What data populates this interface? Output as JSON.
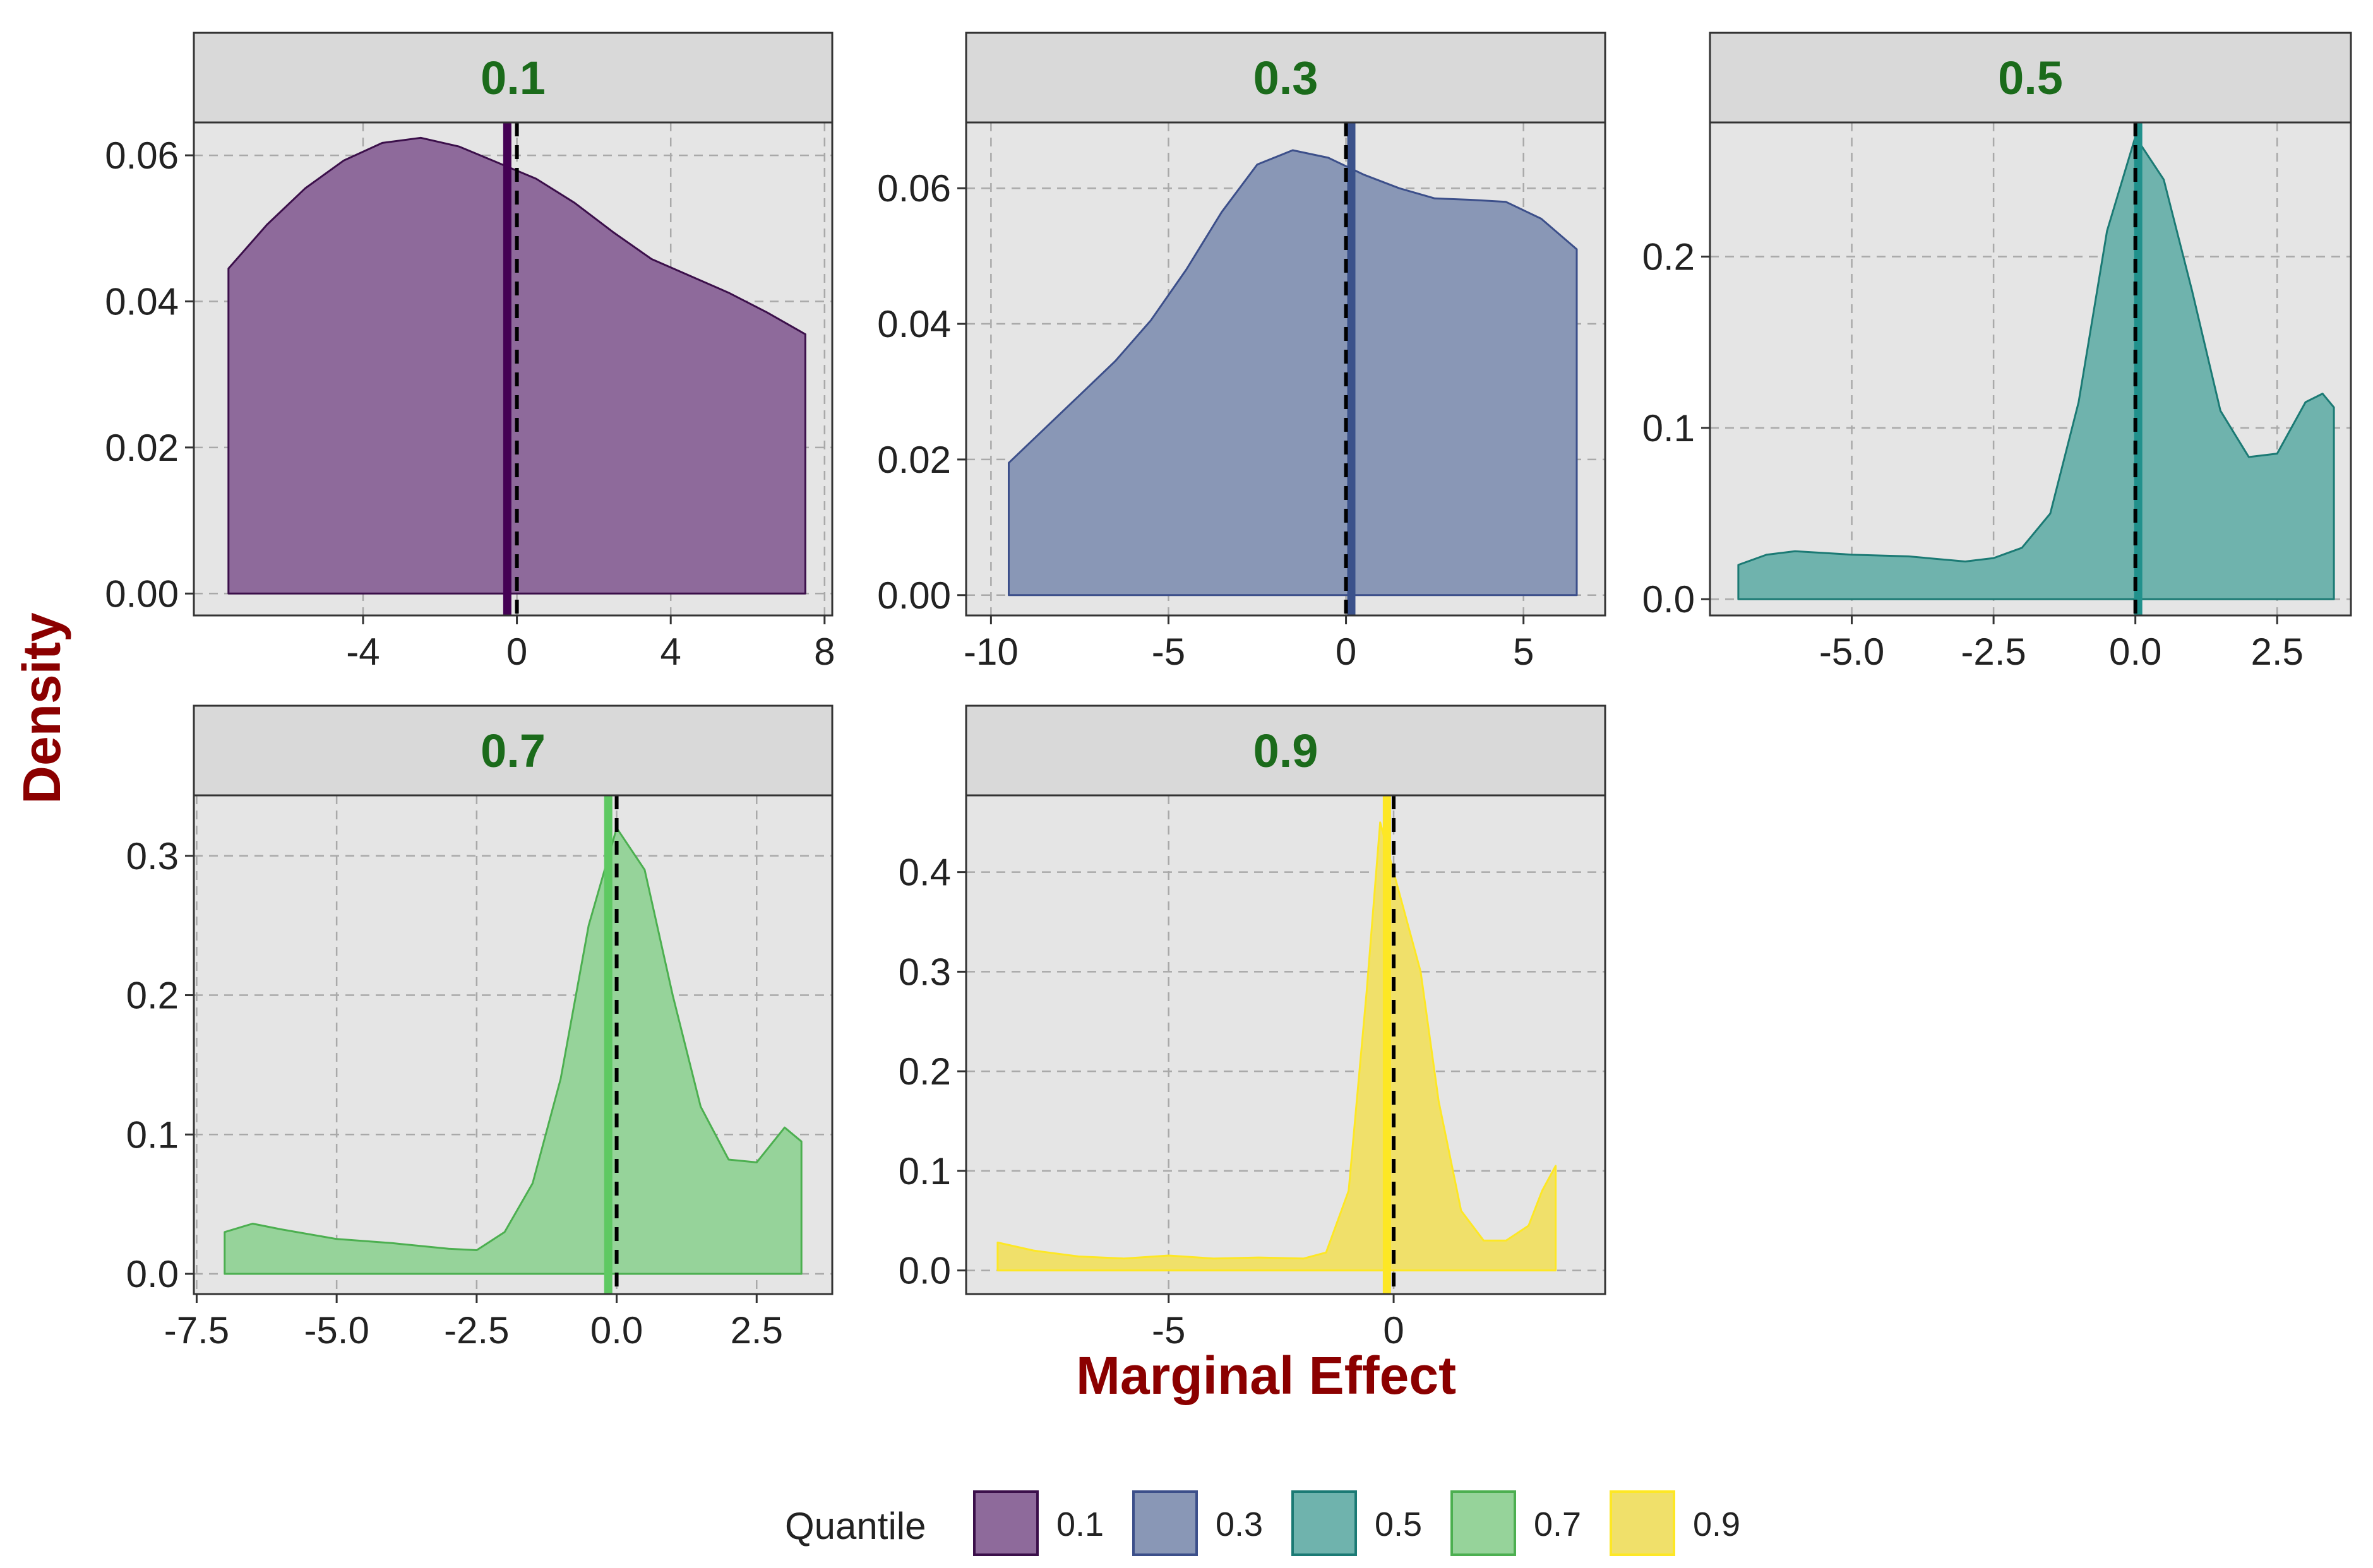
{
  "chart_data": {
    "type": "area",
    "title": "",
    "xlabel": "Marginal Effect",
    "ylabel": "Density",
    "legend_title": "Quantile",
    "legend_position": "bottom",
    "grid": true,
    "colors": {
      "strip_text": "#1b6b1b",
      "axis_title": "#8b0000",
      "panel_bg": "#e5e5e5",
      "strip_bg": "#d9d9d9",
      "grid": "#a9a9a9",
      "dashed_zero_line": "#000000"
    },
    "panels": [
      {
        "label": "0.1",
        "fill": "#8e6a9b",
        "stroke": "#3b0f4a",
        "median_color": "#440154",
        "xlim": [
          -8.4,
          8.2
        ],
        "ylim": [
          -0.003,
          0.0645
        ],
        "xticks": [
          -4,
          0,
          4,
          8
        ],
        "xtick_labels": [
          "-4",
          "0",
          "4",
          "8"
        ],
        "yticks": [
          0,
          0.02,
          0.04,
          0.06
        ],
        "ytick_labels": [
          "0.00",
          "0.02",
          "0.04",
          "0.06"
        ],
        "median": -0.25,
        "x": [
          -7.5,
          -6.5,
          -5.5,
          -4.5,
          -3.5,
          -2.5,
          -1.5,
          -0.5,
          0.5,
          1.5,
          2.5,
          3.5,
          4.5,
          5.5,
          6.5,
          7.5
        ],
        "density": [
          0.0445,
          0.0505,
          0.0555,
          0.0593,
          0.0617,
          0.0624,
          0.0612,
          0.059,
          0.0568,
          0.0535,
          0.0495,
          0.0458,
          0.0435,
          0.0412,
          0.0385,
          0.0355
        ]
      },
      {
        "label": "0.3",
        "fill": "#8997b6",
        "stroke": "#3c4f8a",
        "median_color": "#3b528b",
        "xlim": [
          -10.7,
          7.3
        ],
        "ylim": [
          -0.003,
          0.0697
        ],
        "xticks": [
          -10,
          -5,
          0,
          5
        ],
        "xtick_labels": [
          "-10",
          "-5",
          "0",
          "5"
        ],
        "yticks": [
          0,
          0.02,
          0.04,
          0.06
        ],
        "ytick_labels": [
          "0.00",
          "0.02",
          "0.04",
          "0.06"
        ],
        "median": 0.15,
        "x": [
          -9.5,
          -8.5,
          -7.5,
          -6.5,
          -5.5,
          -4.5,
          -3.5,
          -2.5,
          -1.5,
          -0.5,
          0.5,
          1.5,
          2.5,
          3.5,
          4.5,
          5.5,
          6.5
        ],
        "density": [
          0.0195,
          0.0245,
          0.0295,
          0.0345,
          0.0405,
          0.048,
          0.0565,
          0.0635,
          0.0656,
          0.0645,
          0.062,
          0.06,
          0.0585,
          0.0583,
          0.058,
          0.0555,
          0.051
        ]
      },
      {
        "label": "0.5",
        "fill": "#6fb3ad",
        "stroke": "#1b7a74",
        "median_color": "#21918c",
        "xlim": [
          -7.5,
          3.8
        ],
        "ylim": [
          -0.0095,
          0.2783
        ],
        "xticks": [
          -5,
          -2.5,
          0,
          2.5
        ],
        "xtick_labels": [
          "-5.0",
          "-2.5",
          "0.0",
          "2.5"
        ],
        "yticks": [
          0,
          0.1,
          0.2
        ],
        "ytick_labels": [
          "0.0",
          "0.1",
          "0.2"
        ],
        "median": 0.05,
        "x": [
          -7.0,
          -6.5,
          -6.0,
          -5.0,
          -4.0,
          -3.0,
          -2.5,
          -2.0,
          -1.5,
          -1.0,
          -0.5,
          0.0,
          0.5,
          1.0,
          1.5,
          2.0,
          2.5,
          3.0,
          3.3,
          3.5
        ],
        "density": [
          0.02,
          0.026,
          0.028,
          0.026,
          0.025,
          0.022,
          0.024,
          0.03,
          0.05,
          0.115,
          0.215,
          0.27,
          0.245,
          0.18,
          0.11,
          0.083,
          0.085,
          0.115,
          0.12,
          0.112
        ]
      },
      {
        "label": "0.7",
        "fill": "#96d39a",
        "stroke": "#4caf50",
        "median_color": "#5ec962",
        "xlim": [
          -7.55,
          3.85
        ],
        "ylim": [
          -0.0145,
          0.3434
        ],
        "xticks": [
          -7.5,
          -5,
          -2.5,
          0,
          2.5
        ],
        "xtick_labels": [
          "-7.5",
          "-5.0",
          "-2.5",
          "0.0",
          "2.5"
        ],
        "yticks": [
          0,
          0.1,
          0.2,
          0.3
        ],
        "ytick_labels": [
          "0.0",
          "0.1",
          "0.2",
          "0.3"
        ],
        "median": -0.15,
        "x": [
          -7.0,
          -6.5,
          -6.0,
          -5.0,
          -4.0,
          -3.0,
          -2.5,
          -2.0,
          -1.5,
          -1.0,
          -0.5,
          0.0,
          0.5,
          1.0,
          1.5,
          2.0,
          2.5,
          3.0,
          3.3
        ],
        "density": [
          0.03,
          0.036,
          0.032,
          0.025,
          0.022,
          0.018,
          0.017,
          0.03,
          0.065,
          0.14,
          0.25,
          0.32,
          0.29,
          0.2,
          0.12,
          0.082,
          0.08,
          0.105,
          0.095
        ]
      },
      {
        "label": "0.9",
        "fill": "#f0e06a",
        "stroke": "#fde725",
        "median_color": "#fde725",
        "xlim": [
          -9.5,
          4.7
        ],
        "ylim": [
          -0.0237,
          0.4771
        ],
        "xticks": [
          -5,
          0
        ],
        "xtick_labels": [
          "-5",
          "0"
        ],
        "yticks": [
          0,
          0.1,
          0.2,
          0.3,
          0.4
        ],
        "ytick_labels": [
          "0.0",
          "0.1",
          "0.2",
          "0.3",
          "0.4"
        ],
        "median": -0.15,
        "x": [
          -8.8,
          -8.0,
          -7.0,
          -6.0,
          -5.0,
          -4.0,
          -3.0,
          -2.0,
          -1.5,
          -1.0,
          -0.6,
          -0.3,
          0.0,
          0.3,
          0.6,
          1.0,
          1.5,
          2.0,
          2.5,
          3.0,
          3.3,
          3.6
        ],
        "density": [
          0.028,
          0.02,
          0.014,
          0.012,
          0.015,
          0.012,
          0.013,
          0.012,
          0.018,
          0.08,
          0.28,
          0.45,
          0.4,
          0.35,
          0.3,
          0.17,
          0.06,
          0.03,
          0.03,
          0.045,
          0.08,
          0.105
        ]
      }
    ]
  }
}
